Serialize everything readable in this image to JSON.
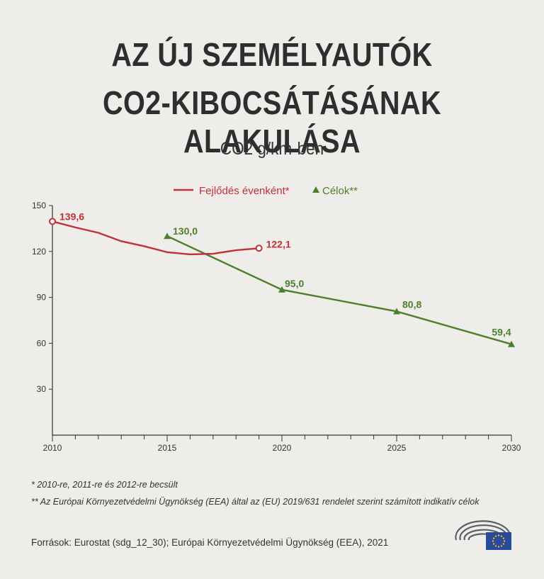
{
  "title_line1": "AZ ÚJ SZEMÉLYAUTÓK",
  "title_line2": "CO2-KIBOCSÁTÁSÁNAK ALAKULÁSA",
  "subtitle": "CO2 g/km-ben",
  "chart_data": {
    "type": "line",
    "title": "AZ ÚJ SZEMÉLYAUTÓK CO2-KIBOCSÁTÁSÁNAK ALAKULÁSA",
    "ylabel": "CO2 g/km-ben",
    "xlim": [
      2010,
      2030
    ],
    "ylim": [
      0,
      150
    ],
    "xticks": [
      2010,
      2015,
      2020,
      2025,
      2030
    ],
    "yticks": [
      30,
      60,
      90,
      120,
      150
    ],
    "legend_position": "top-center",
    "series": [
      {
        "name": "Fejlődés évenként*",
        "color": "#c0313a",
        "x": [
          2010,
          2011,
          2012,
          2013,
          2014,
          2015,
          2016,
          2017,
          2018,
          2019
        ],
        "values": [
          139.6,
          135.7,
          132.2,
          126.7,
          123.4,
          119.5,
          118.1,
          118.5,
          120.8,
          122.1
        ],
        "labels": [
          {
            "x": 2010,
            "text": "139,6"
          },
          {
            "x": 2019,
            "text": "122,1"
          }
        ]
      },
      {
        "name": "Célok**",
        "color": "#4e7f2c",
        "x": [
          2015,
          2020,
          2025,
          2030
        ],
        "values": [
          130.0,
          95.0,
          80.8,
          59.4
        ],
        "labels": [
          {
            "x": 2015,
            "text": "130,0"
          },
          {
            "x": 2020,
            "text": "95,0"
          },
          {
            "x": 2025,
            "text": "80,8"
          },
          {
            "x": 2030,
            "text": "59,4"
          }
        ]
      }
    ]
  },
  "notes": {
    "note1": "* 2010-re, 2011-re és 2012-re becsült",
    "note2": "** Az Európai Környezetvédelmi Ügynökség (EEA) által az (EU) 2019/631 rendelet szerint számított indikatív célok"
  },
  "source": "Források: Eurostat (sdg_12_30); Európai Környezetvédelmi Ügynökség (EEA), 2021",
  "colors": {
    "background": "#eeede9",
    "red": "#c0313a",
    "green": "#4e7f2c",
    "eu_blue": "#2a4a9b"
  }
}
